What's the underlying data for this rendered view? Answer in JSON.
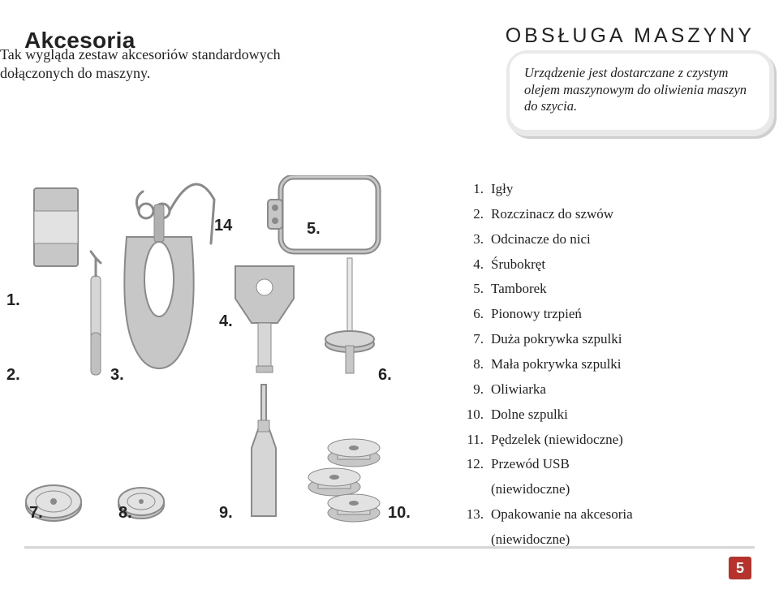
{
  "section_header": "OBSŁUGA MASZYNY",
  "title": "Akcesoria",
  "intro": "Tak wygląda zestaw akcesoriów standardowych dołączonych do maszyny.",
  "info_box": "Urządzenie jest dostarczane z czystym olejem maszynowym do oliwienia maszyn do szycia.",
  "legend": [
    {
      "n": "1.",
      "t": "Igły"
    },
    {
      "n": "2.",
      "t": "Rozczinacz do szwów"
    },
    {
      "n": "3.",
      "t": "Odcinacze do nici"
    },
    {
      "n": "4.",
      "t": "Śrubokręt"
    },
    {
      "n": "5.",
      "t": "Tamborek"
    },
    {
      "n": "6.",
      "t": "Pionowy trzpień"
    },
    {
      "n": "7.",
      "t": "Duża pokrywka szpulki"
    },
    {
      "n": "8.",
      "t": "Mała pokrywka szpulki"
    },
    {
      "n": "9.",
      "t": "Oliwiarka"
    },
    {
      "n": "10.",
      "t": "Dolne szpulki"
    },
    {
      "n": "11.",
      "t": "Pędzelek (niewidoczne)"
    },
    {
      "n": "12.",
      "t": "Przewód USB",
      "sub": "(niewidoczne)"
    },
    {
      "n": "13.",
      "t": "Opakowanie na akcesoria",
      "sub": "(niewidoczne)"
    }
  ],
  "annotations": {
    "l1": "1.",
    "l2": "2.",
    "l3": "3.",
    "l4": "4.",
    "l5": "5.",
    "l6": "6.",
    "l7": "7.",
    "l8": "8.",
    "l9": "9.",
    "l10": "10.",
    "l14": "14"
  },
  "page_number": "5",
  "colors": {
    "gray_fill": "#c7c7c7",
    "gray_stroke": "#8a8a8a",
    "light": "#e9e9e9",
    "dark": "#9a9a9a",
    "metal": "#d6d6d6",
    "pageRed": "#b7322b"
  }
}
